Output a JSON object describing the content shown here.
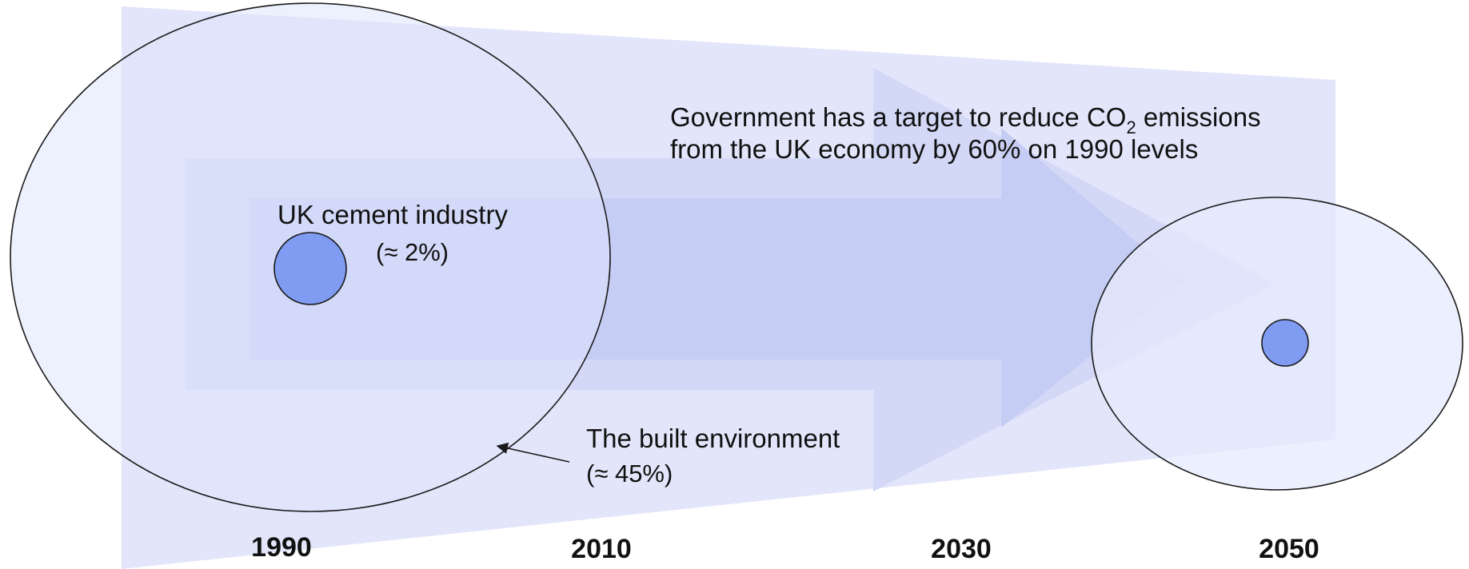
{
  "diagram": {
    "target_note_line1_prefix": "Government has a target to reduce CO",
    "target_note_subscript": "2",
    "target_note_line1_suffix": " emissions",
    "target_note_line2": "from the UK economy by 60% on 1990 levels",
    "cement_label": "UK cement industry",
    "cement_share": "(≈ 2%)",
    "built_env_label": "The built environment",
    "built_env_share": "(≈ 45%)",
    "years": [
      "1990",
      "2010",
      "2030",
      "2050"
    ],
    "colors": {
      "band": "#e3e6fb",
      "arrow": "#cdd2f5",
      "inner_band": "#c2c9f3",
      "circle_fill": "#dfe3fb",
      "small_circle": "#7f9bf2",
      "stroke": "#1a1a1a"
    }
  }
}
